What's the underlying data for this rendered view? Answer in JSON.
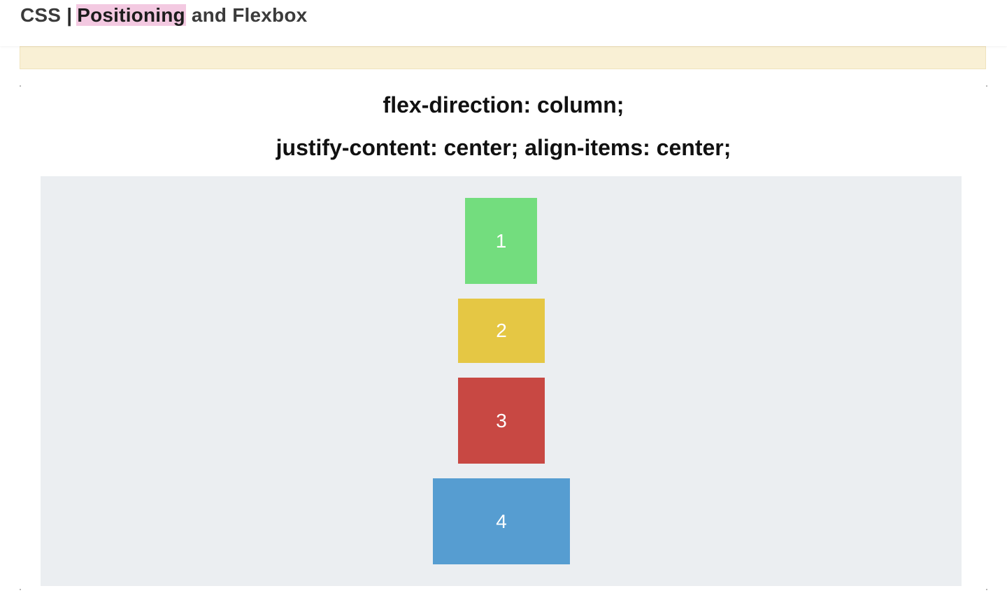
{
  "header": {
    "course_prefix": "CSS",
    "separator": "|",
    "highlight_word": "Positioning",
    "title_rest": "and Flexbox",
    "highlight_color": "#f3c9e1"
  },
  "banner": {
    "color": "#f9f0d5"
  },
  "demo": {
    "heading_line_1": "flex-direction: column;",
    "heading_line_2": "justify-content: center; align-items: center;",
    "container_color": "#ebeef1",
    "boxes": [
      {
        "label": "1",
        "color": "#73dd7e"
      },
      {
        "label": "2",
        "color": "#e5c744"
      },
      {
        "label": "3",
        "color": "#c84843"
      },
      {
        "label": "4",
        "color": "#569dd1"
      }
    ]
  }
}
